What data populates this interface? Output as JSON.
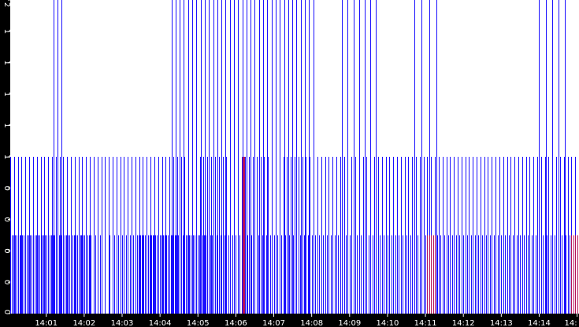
{
  "chart_data": {
    "type": "bar",
    "title": "",
    "xlabel": "",
    "ylabel": "",
    "grid": false,
    "legend": "none",
    "x_tick_labels": [
      "14:01",
      "14:02",
      "14:03",
      "14:04",
      "14:05",
      "14:06",
      "14:07",
      "14:08",
      "14:09",
      "14:10",
      "14:11",
      "14:12",
      "14:13",
      "14:14",
      "14:"
    ],
    "x_tick_minutes": [
      1,
      2,
      3,
      4,
      5,
      6,
      7,
      8,
      9,
      10,
      11,
      12,
      13,
      14,
      15
    ],
    "xlim_minutes": [
      0.05,
      15.05
    ],
    "y_tick_labels": [
      "0",
      "0",
      "0",
      "0",
      "0",
      "1",
      "1",
      "1",
      "1",
      "1",
      "2"
    ],
    "ylim": [
      0,
      2
    ],
    "series": [
      {
        "color": "#1a10ff",
        "samples": [
          {
            "start": 0.05,
            "end": 2.2,
            "step": 0.04,
            "value": 0.5
          },
          {
            "start": 2.3,
            "end": 2.7,
            "step": 0.12,
            "value": 0.5
          },
          {
            "start": 2.75,
            "end": 3.3,
            "step": 0.05,
            "value": 0.5
          },
          {
            "start": 3.4,
            "end": 5.4,
            "step": 0.04,
            "value": 0.5
          },
          {
            "start": 5.5,
            "end": 6.0,
            "step": 0.1,
            "value": 0.5
          },
          {
            "start": 6.05,
            "end": 10.8,
            "step": 0.05,
            "value": 0.5
          },
          {
            "start": 10.9,
            "end": 15.0,
            "step": 0.05,
            "value": 0.5
          },
          {
            "start": 0.05,
            "end": 15.0,
            "step": 0.1,
            "value": 1.0
          },
          {
            "start": 1.2,
            "end": 1.4,
            "step": 0.1,
            "value": 2.0
          },
          {
            "start": 4.3,
            "end": 8.1,
            "step": 0.11,
            "value": 2.0
          },
          {
            "start": 8.8,
            "end": 9.8,
            "step": 0.15,
            "value": 2.0
          },
          {
            "start": 10.7,
            "end": 11.3,
            "step": 0.2,
            "value": 2.0
          },
          {
            "start": 14.0,
            "end": 14.7,
            "step": 0.17,
            "value": 2.0
          }
        ]
      },
      {
        "color": "#b40f5a",
        "samples": [
          {
            "start": 6.18,
            "end": 6.22,
            "step": 0.02,
            "value": 1.0
          },
          {
            "start": 11.05,
            "end": 11.25,
            "step": 0.05,
            "value": 0.5
          },
          {
            "start": 14.85,
            "end": 15.0,
            "step": 0.05,
            "value": 0.5
          }
        ]
      }
    ],
    "colors": {
      "background": "#000000",
      "plot_background": "#ffffff",
      "axis_text": "#ffffff"
    }
  }
}
